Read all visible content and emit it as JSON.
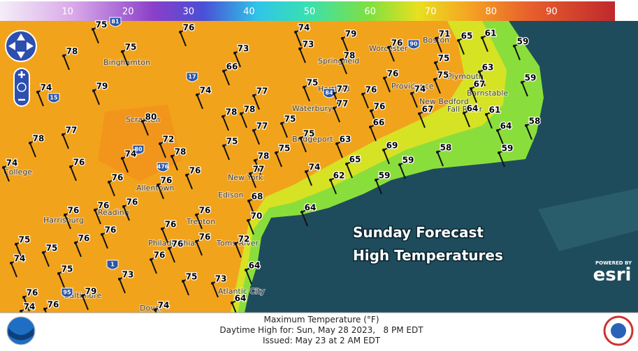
{
  "colorbar": {
    "ticks": [
      10,
      20,
      30,
      40,
      50,
      60,
      70,
      80,
      90
    ],
    "range": [
      0,
      100
    ]
  },
  "stations": [
    75,
    76,
    74,
    79,
    71,
    65,
    61,
    59,
    78,
    75,
    73,
    73,
    76,
    78,
    75,
    66,
    76,
    75,
    63,
    59,
    74,
    79,
    74,
    77,
    75,
    77,
    76,
    74,
    67,
    78,
    78,
    77,
    76,
    67,
    64,
    61,
    80,
    77,
    77,
    75,
    66,
    64,
    58,
    78,
    72,
    75,
    75,
    63,
    69,
    58,
    59,
    74,
    76,
    74,
    78,
    78,
    75,
    65,
    59,
    76,
    76,
    77,
    74,
    62,
    59,
    76,
    68,
    76,
    76,
    76,
    76,
    64,
    70,
    76,
    76,
    75,
    76,
    72,
    76,
    76,
    75,
    74,
    76,
    75,
    73,
    64,
    75,
    73,
    76,
    79,
    74,
    76,
    74,
    64
  ],
  "cities": [
    "Binghamton",
    "Springfield",
    "Worcester",
    "Boston",
    "Plymouth",
    "Barnstable",
    "Providence",
    "New Bedford",
    "Hartford",
    "Waterbury",
    "Bridgeport",
    "Scranton",
    "Allentown",
    "New York",
    "Edison",
    "Trenton",
    "Philadelphia",
    "Toms River",
    "Atlantic City",
    "Harrisburg",
    "Reading",
    "Baltimore",
    "Dover",
    "College",
    "Fall River"
  ],
  "highways": [
    "81",
    "90",
    "17",
    "15",
    "84",
    "80",
    "476",
    "95",
    "1"
  ],
  "overlay": {
    "title": "Sunday Forecast",
    "subtitle": "High Temperatures"
  },
  "esri": {
    "powered": "POWERED BY",
    "brand": "esri"
  },
  "footer": {
    "product": "Maximum Temperature (°F)",
    "valid": "Daytime High for: Sun, May 28 2023,   8 PM EDT",
    "issued": "Issued: May 23 at 2 AM EDT"
  }
}
